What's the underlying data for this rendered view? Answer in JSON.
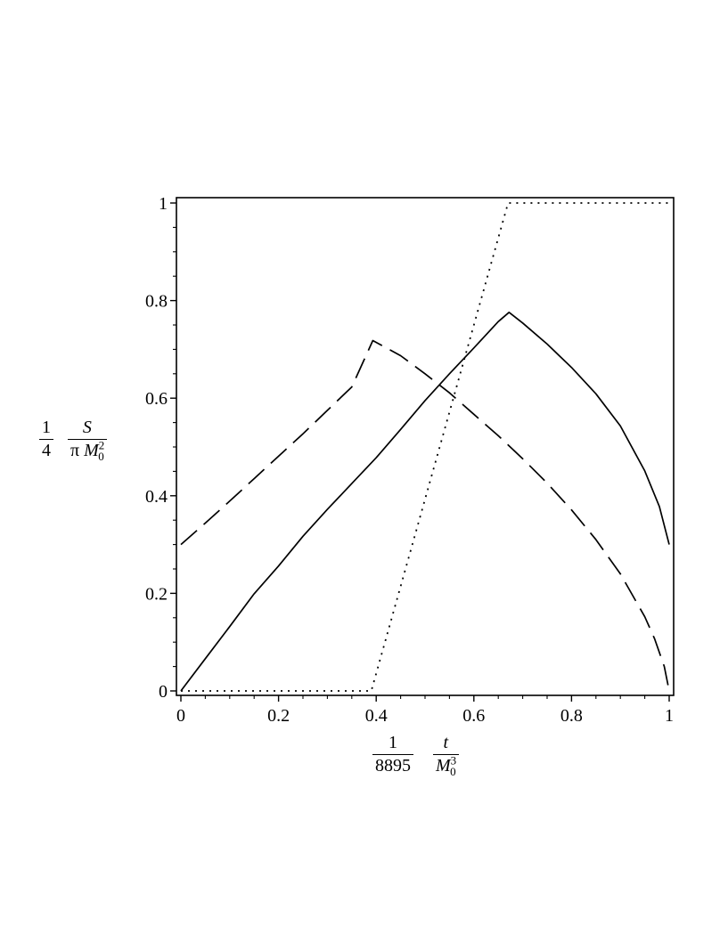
{
  "chart_data": {
    "type": "line",
    "xlim": [
      0,
      1
    ],
    "ylim": [
      0,
      1
    ],
    "x_ticks": [
      "0",
      "0.2",
      "0.4",
      "0.6",
      "0.8",
      "1"
    ],
    "y_ticks": [
      "0",
      "0.2",
      "0.4",
      "0.6",
      "0.8",
      "1"
    ],
    "grid": false,
    "legend": "none",
    "ylabel": {
      "coef_num": "1",
      "coef_den": "4",
      "num": "S",
      "den_pi": "π",
      "den_var": "M",
      "den_sup": "2",
      "den_sub": "0"
    },
    "xlabel": {
      "coef_num": "1",
      "coef_den": "8895",
      "num": "t",
      "den_var": "M",
      "den_sup": "3",
      "den_sub": "0"
    },
    "series": [
      {
        "style": "solid",
        "x": [
          0,
          0.05,
          0.1,
          0.15,
          0.2,
          0.25,
          0.3,
          0.35,
          0.4,
          0.45,
          0.5,
          0.55,
          0.6,
          0.65,
          0.672,
          0.7,
          0.75,
          0.8,
          0.85,
          0.9,
          0.95,
          0.98,
          1.0
        ],
        "y": [
          0,
          0.066,
          0.132,
          0.199,
          0.256,
          0.317,
          0.372,
          0.425,
          0.478,
          0.536,
          0.595,
          0.65,
          0.703,
          0.757,
          0.776,
          0.754,
          0.711,
          0.663,
          0.609,
          0.543,
          0.451,
          0.378,
          0.3
        ]
      },
      {
        "style": "dashed",
        "x": [
          0,
          0.05,
          0.1,
          0.15,
          0.2,
          0.25,
          0.3,
          0.35,
          0.393,
          0.45,
          0.5,
          0.55,
          0.6,
          0.65,
          0.7,
          0.75,
          0.8,
          0.85,
          0.9,
          0.95,
          0.97,
          0.99,
          1.0
        ],
        "y": [
          0.3,
          0.344,
          0.389,
          0.435,
          0.481,
          0.527,
          0.575,
          0.623,
          0.718,
          0.687,
          0.65,
          0.611,
          0.567,
          0.523,
          0.476,
          0.426,
          0.371,
          0.31,
          0.24,
          0.152,
          0.107,
          0.05,
          0
        ]
      },
      {
        "style": "dotted",
        "x": [
          0,
          0.39,
          0.67,
          1.0
        ],
        "y": [
          0,
          0,
          1,
          1
        ]
      }
    ]
  }
}
